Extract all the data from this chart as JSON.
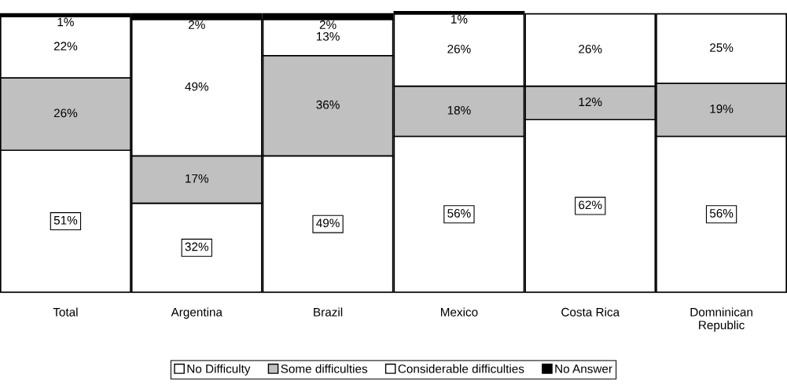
{
  "chart_data": {
    "type": "bar",
    "stacked": true,
    "categories": [
      "Total",
      "Argentina",
      "Brazil",
      "Mexico",
      "Costa Rica",
      "Domninican\nRepublic"
    ],
    "series": [
      {
        "name": "No Difficulty",
        "color": "#ffffff",
        "values": [
          51,
          32,
          49,
          56,
          62,
          56
        ],
        "value_labels": [
          "51%",
          "32%",
          "49%",
          "56%",
          "62%",
          "56%"
        ]
      },
      {
        "name": "Some difficulties",
        "color": "#c0c0c0",
        "values": [
          26,
          17,
          36,
          18,
          12,
          19
        ],
        "value_labels": [
          "26%",
          "17%",
          "36%",
          "18%",
          "12%",
          "19%"
        ]
      },
      {
        "name": "Considerable difficulties",
        "color": "#ffffff",
        "values": [
          22,
          49,
          13,
          26,
          26,
          25
        ],
        "value_labels": [
          "22%",
          "49%",
          "13%",
          "26%",
          "26%",
          "25%"
        ]
      },
      {
        "name": "No Answer",
        "color": "#000000",
        "values": [
          1,
          2,
          2,
          1,
          null,
          null
        ],
        "value_labels": [
          "1%",
          "2%",
          "2%",
          "1%",
          null,
          null
        ]
      }
    ],
    "legend": "bottom",
    "grid": false
  }
}
